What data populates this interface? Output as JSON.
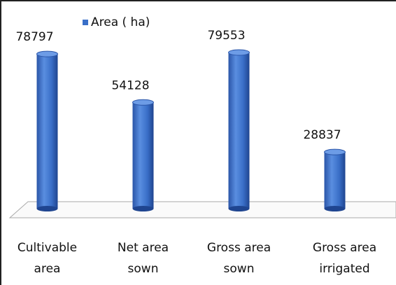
{
  "chart_data": {
    "type": "bar",
    "categories": [
      "Cultivable area",
      "Net area sown",
      "Gross area sown",
      "Gross area irrigated"
    ],
    "series": [
      {
        "name": "Area ( ha)",
        "color": "#3a6fc8",
        "values": [
          78797,
          54128,
          79553,
          28837
        ]
      }
    ],
    "legend": "top"
  }
}
